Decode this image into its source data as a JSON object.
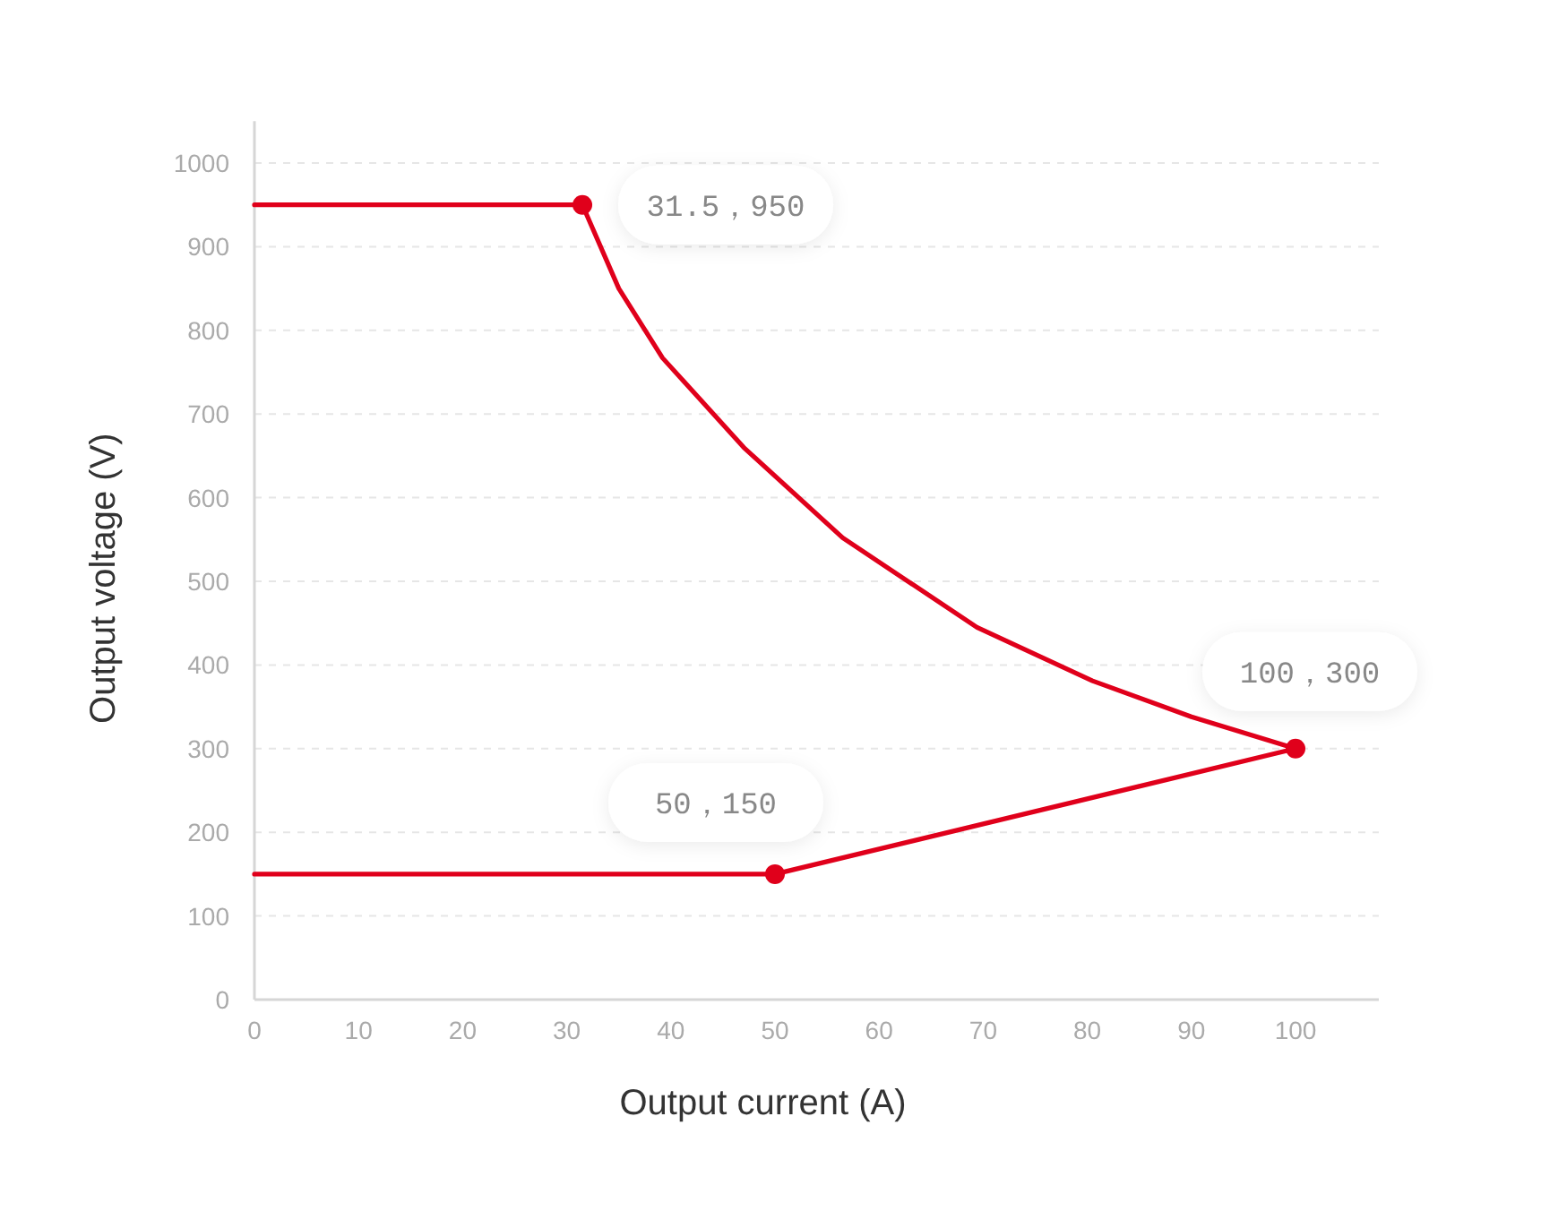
{
  "chart_data": {
    "type": "line",
    "xlabel": "Output current (A)",
    "ylabel": "Output voltage (V)",
    "xlim": [
      0,
      108
    ],
    "ylim": [
      0,
      1050
    ],
    "xticks": [
      0,
      10,
      20,
      30,
      40,
      50,
      60,
      70,
      80,
      90,
      100
    ],
    "yticks": [
      0,
      100,
      200,
      300,
      400,
      500,
      600,
      700,
      800,
      900,
      1000
    ],
    "grid": "y",
    "line_style": "solid",
    "series": [
      {
        "color": "#e0001b",
        "marker": "none",
        "x": [
          0,
          31.5,
          35,
          39.2,
          47,
          56.5,
          69.4,
          80.5,
          90,
          100,
          50,
          0
        ],
        "values": [
          950,
          950,
          850,
          767,
          660,
          552,
          445,
          381,
          338,
          300,
          150,
          150
        ]
      },
      {
        "type": "scatter",
        "color": "#e0001b",
        "marker": "circle",
        "x": [
          31.5,
          100,
          50
        ],
        "values": [
          950,
          300,
          150
        ]
      }
    ],
    "annotations": [
      {
        "text": "31.5，950",
        "x": 31.5,
        "y": 950
      },
      {
        "text": "100，300",
        "x": 100,
        "y": 300
      },
      {
        "text": "50，150",
        "x": 50,
        "y": 150
      }
    ]
  }
}
